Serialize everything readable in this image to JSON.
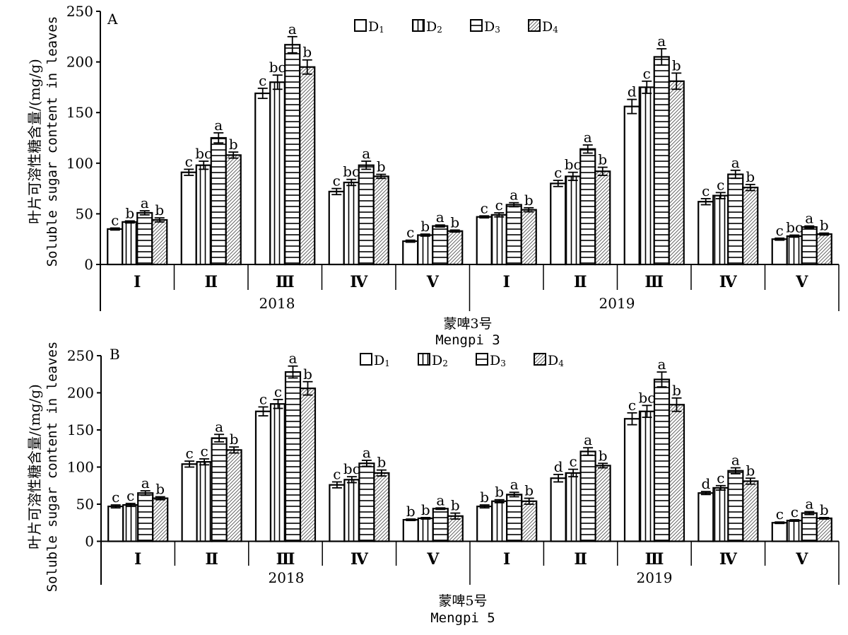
{
  "figure": {
    "panels": [
      "A",
      "B"
    ]
  },
  "chart_data": [
    {
      "type": "bar",
      "panel_label": "A",
      "title": "",
      "cultivar_cn": "蒙啤3号",
      "cultivar_en": "Mengpi 3",
      "ylabel_cn": "叶片可溶性糖含量/(mg/g)",
      "ylabel_en": "Soluble sugar content in leaves",
      "ylim": [
        0,
        250
      ],
      "yticks": [
        0,
        50,
        100,
        150,
        200,
        250
      ],
      "years": [
        "2018",
        "2019"
      ],
      "categories": [
        "Ⅰ",
        "Ⅱ",
        "Ⅲ",
        "Ⅳ",
        "Ⅴ",
        "Ⅰ",
        "Ⅱ",
        "Ⅲ",
        "Ⅳ",
        "Ⅴ"
      ],
      "legend": {
        "position": "top-center",
        "entries": [
          "D1",
          "D2",
          "D3",
          "D4"
        ]
      },
      "series": [
        {
          "name": "D1",
          "pattern": "blank",
          "values": [
            35,
            91,
            169,
            72,
            23,
            47,
            80,
            156,
            62,
            25
          ],
          "errors": [
            1,
            3,
            5,
            3,
            1,
            1,
            3,
            7,
            3,
            1
          ],
          "letters": [
            "c",
            "c",
            "c",
            "c",
            "c",
            "c",
            "c",
            "d",
            "c",
            "c"
          ]
        },
        {
          "name": "D2",
          "pattern": "vertical",
          "values": [
            42,
            98,
            180,
            81,
            29,
            49,
            87,
            175,
            68,
            28
          ],
          "errors": [
            1,
            4,
            7,
            3,
            1,
            2,
            4,
            6,
            3,
            1
          ],
          "letters": [
            "b",
            "bc",
            "bc",
            "bc",
            "b",
            "c",
            "bc",
            "c",
            "c",
            "bc"
          ]
        },
        {
          "name": "D3",
          "pattern": "horizontal",
          "values": [
            51,
            125,
            217,
            98,
            38,
            59,
            114,
            205,
            89,
            37
          ],
          "errors": [
            2,
            5,
            8,
            4,
            1,
            2,
            4,
            8,
            4,
            1
          ],
          "letters": [
            "a",
            "a",
            "a",
            "a",
            "a",
            "a",
            "a",
            "a",
            "a",
            "a"
          ]
        },
        {
          "name": "D4",
          "pattern": "diagonal",
          "values": [
            44,
            108,
            195,
            87,
            33,
            54,
            92,
            181,
            76,
            30
          ],
          "errors": [
            2,
            3,
            7,
            2,
            1,
            2,
            4,
            8,
            3,
            1
          ],
          "letters": [
            "b",
            "b",
            "b",
            "b",
            "b",
            "b",
            "b",
            "b",
            "b",
            "b"
          ]
        }
      ]
    },
    {
      "type": "bar",
      "panel_label": "B",
      "title": "",
      "cultivar_cn": "蒙啤5号",
      "cultivar_en": "Mengpi 5",
      "ylabel_cn": "叶片可溶性糖含量/(mg/g)",
      "ylabel_en": "Soluble sugar content in leaves",
      "ylim": [
        0,
        250
      ],
      "yticks": [
        0,
        50,
        100,
        150,
        200,
        250
      ],
      "years": [
        "2018",
        "2019"
      ],
      "categories": [
        "Ⅰ",
        "Ⅱ",
        "Ⅲ",
        "Ⅳ",
        "Ⅴ",
        "Ⅰ",
        "Ⅱ",
        "Ⅲ",
        "Ⅳ",
        "Ⅴ"
      ],
      "legend": {
        "position": "top-center",
        "entries": [
          "D1",
          "D2",
          "D3",
          "D4"
        ]
      },
      "series": [
        {
          "name": "D1",
          "pattern": "blank",
          "values": [
            47,
            104,
            175,
            76,
            29,
            47,
            85,
            165,
            65,
            25
          ],
          "errors": [
            2,
            4,
            6,
            4,
            1,
            2,
            5,
            8,
            2,
            1
          ],
          "letters": [
            "c",
            "c",
            "c",
            "c",
            "b",
            "b",
            "d",
            "c",
            "d",
            "c"
          ]
        },
        {
          "name": "D2",
          "pattern": "vertical",
          "values": [
            49,
            107,
            185,
            83,
            31,
            54,
            92,
            175,
            72,
            28
          ],
          "errors": [
            2,
            4,
            6,
            4,
            1,
            2,
            5,
            8,
            3,
            1
          ],
          "letters": [
            "c",
            "c",
            "c",
            "bc",
            "b",
            "b",
            "c",
            "bc",
            "c",
            "c"
          ]
        },
        {
          "name": "D3",
          "pattern": "horizontal",
          "values": [
            65,
            139,
            228,
            105,
            44,
            63,
            121,
            218,
            95,
            38
          ],
          "errors": [
            3,
            5,
            8,
            4,
            1,
            3,
            5,
            10,
            4,
            2
          ],
          "letters": [
            "a",
            "a",
            "a",
            "a",
            "a",
            "a",
            "a",
            "a",
            "a",
            "a"
          ]
        },
        {
          "name": "D4",
          "pattern": "diagonal",
          "values": [
            58,
            123,
            206,
            92,
            34,
            54,
            102,
            184,
            81,
            31
          ],
          "errors": [
            2,
            4,
            9,
            4,
            4,
            4,
            3,
            9,
            4,
            1
          ],
          "letters": [
            "b",
            "b",
            "b",
            "b",
            "b",
            "b",
            "b",
            "b",
            "b",
            "b"
          ]
        }
      ]
    }
  ]
}
